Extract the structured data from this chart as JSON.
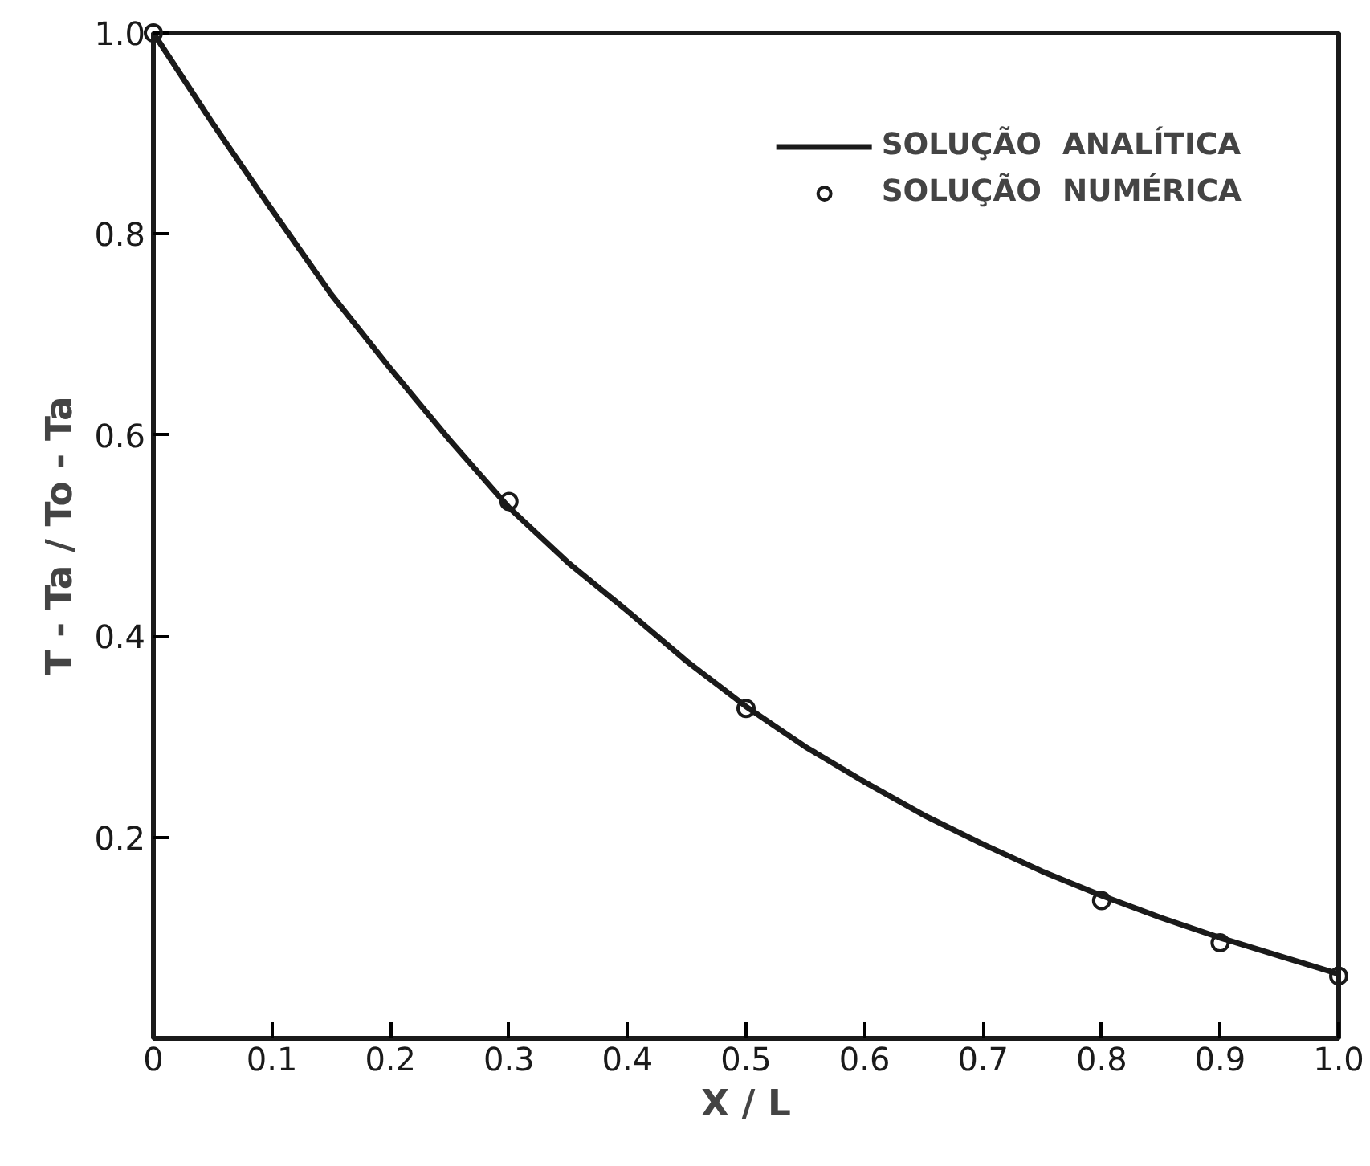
{
  "chart_data": {
    "type": "line",
    "xlabel": "X / L",
    "ylabel": "T - Ta / To - Ta",
    "xlim": [
      0,
      1
    ],
    "ylim": [
      0,
      1
    ],
    "xticks": [
      0,
      0.1,
      0.2,
      0.3,
      0.4,
      0.5,
      0.6,
      0.7,
      0.8,
      0.9,
      {
        "value": 1,
        "label": "1.0"
      }
    ],
    "yticks": [
      0.2,
      0.4,
      0.6,
      0.8,
      {
        "value": 1,
        "label": "1.0"
      }
    ],
    "grid": false,
    "legend": "top right",
    "series": [
      {
        "name": "SOLUÇÃO  ANALÍTICA",
        "color": "#1a1a1a",
        "marker": "none",
        "line_style": "solid",
        "x": [
          0,
          0.05,
          0.1,
          0.15,
          0.2,
          0.25,
          0.3,
          0.35,
          0.4,
          0.45,
          0.5,
          0.55,
          0.6,
          0.65,
          0.7,
          0.75,
          0.8,
          0.85,
          0.9,
          0.95,
          1.0
        ],
        "values": [
          1.0,
          0.91,
          0.824,
          0.74,
          0.666,
          0.595,
          0.528,
          0.473,
          0.425,
          0.375,
          0.33,
          0.29,
          0.255,
          0.222,
          0.193,
          0.166,
          0.142,
          0.12,
          0.1,
          0.082,
          0.064
        ]
      },
      {
        "name": "SOLUÇÃO  NUMÉRICA",
        "type": "scatter",
        "color": "#1a1a1a",
        "marker": "circle",
        "x": [
          0,
          0.3,
          0.5,
          0.8,
          0.9,
          1.0
        ],
        "values": [
          1.0,
          0.534,
          0.328,
          0.137,
          0.095,
          0.062
        ]
      }
    ]
  }
}
